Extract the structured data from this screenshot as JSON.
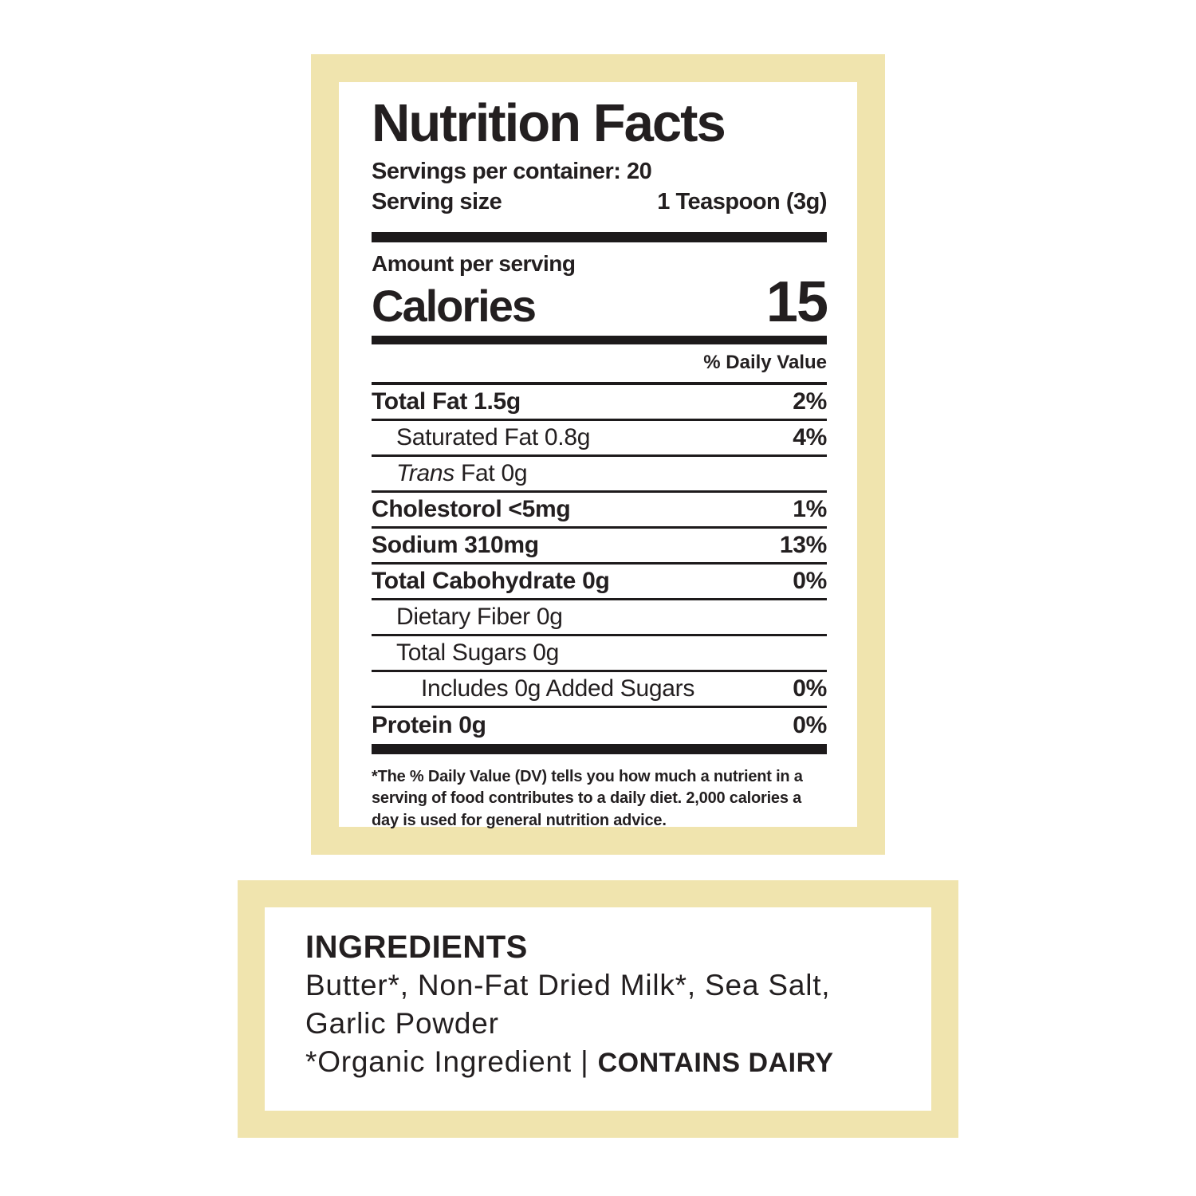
{
  "colors": {
    "panel_border": "#f0e4ae",
    "text": "#231f20",
    "rule": "#1d1a1b"
  },
  "nutrition_label": {
    "title": "Nutrition Facts",
    "servings_per_container": "Servings per container: 20",
    "serving_size_label": "Serving size",
    "serving_size_value": "1 Teaspoon (3g)",
    "amount_per_serving": "Amount per serving",
    "calories_label": "Calories",
    "calories_value": "15",
    "daily_value_header": "% Daily Value",
    "rows": [
      {
        "name": "Total Fat 1.5g",
        "dv": "2%",
        "bold": true,
        "indent": 0
      },
      {
        "name": "Saturated Fat 0.8g",
        "dv": "4%",
        "bold": false,
        "indent": 1
      },
      {
        "italic_prefix": "Trans",
        "name": " Fat 0g",
        "dv": "",
        "bold": false,
        "indent": 1
      },
      {
        "name": "Cholestorol <5mg",
        "dv": "1%",
        "bold": true,
        "indent": 0
      },
      {
        "name": "Sodium 310mg",
        "dv": "13%",
        "bold": true,
        "indent": 0
      },
      {
        "name": "Total Cabohydrate 0g",
        "dv": "0%",
        "bold": true,
        "indent": 0
      },
      {
        "name": "Dietary Fiber 0g",
        "dv": "",
        "bold": false,
        "indent": 1
      },
      {
        "name": "Total Sugars 0g",
        "dv": "",
        "bold": false,
        "indent": 1
      },
      {
        "name": "Includes 0g Added Sugars",
        "dv": "0%",
        "bold": false,
        "indent": 2
      },
      {
        "name": "Protein 0g",
        "dv": "0%",
        "bold": true,
        "indent": 0
      }
    ],
    "footnote": "*The % Daily Value (DV) tells you how much a nutrient in a serving of food contributes to a daily diet. 2,000 calories a day is used for general nutrition advice."
  },
  "ingredients": {
    "heading": "INGREDIENTS",
    "line1": "Butter*, Non-Fat Dried Milk*, Sea Salt,",
    "line2": "Garlic Powder",
    "line3_regular": "*Organic Ingredient | ",
    "line3_allergen": "CONTAINS DAIRY"
  }
}
